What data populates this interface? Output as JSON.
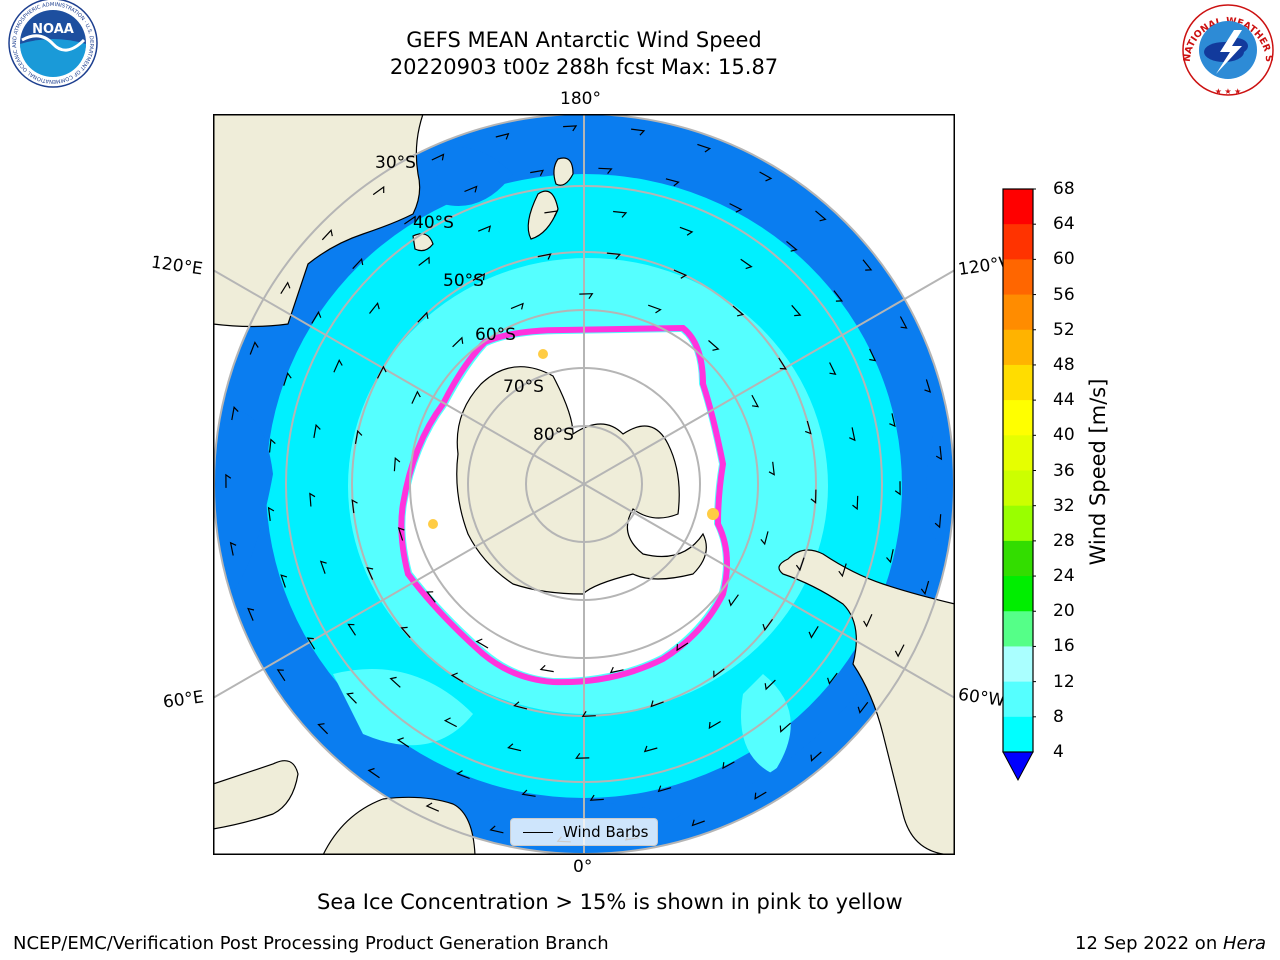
{
  "title_line1": "GEFS MEAN Antarctic Wind Speed",
  "title_line2": "20220903 t00z 288h fcst   Max: 15.87",
  "longitude_labels": {
    "top": "180°",
    "bottom": "0°",
    "upper_left": "120°E",
    "upper_right": "120°W",
    "lower_left": "60°E",
    "lower_right": "60°W"
  },
  "latitude_labels": [
    "30°S",
    "40°S",
    "50°S",
    "60°S",
    "70°S",
    "80°S"
  ],
  "legend": {
    "label": "Wind Barbs"
  },
  "colorbar": {
    "label": "Wind Speed [m/s]",
    "ticks": [
      "68",
      "64",
      "60",
      "56",
      "52",
      "48",
      "44",
      "40",
      "36",
      "32",
      "28",
      "24",
      "20",
      "16",
      "12",
      "8",
      "4"
    ],
    "colors_top_to_bottom": [
      "#ff0000",
      "#ff3300",
      "#ff6600",
      "#ff8c00",
      "#ffb300",
      "#ffdd00",
      "#ffff00",
      "#e6ff00",
      "#ccff00",
      "#99ff00",
      "#33dd00",
      "#00ee00",
      "#55ff88",
      "#aaffff",
      "#55ffff",
      "#00ffff",
      "#0077ff"
    ],
    "extend_color": "#0000ff"
  },
  "map_colors": {
    "land": "#efedd9",
    "ocean_strong": "#0a7df0",
    "ocean_mid": "#00f0ff",
    "ocean_light": "#55ffff",
    "ice_free": "#ffffff",
    "ice_edge_pink": "#ff33dd",
    "ice_edge_yellow": "#ffcc44",
    "grid": "#b5b5b5"
  },
  "caption": "Sea Ice Concentration > 15% is shown in pink to yellow",
  "footer_left": "NCEP/EMC/Verification Post Processing Product Generation Branch",
  "footer_right_prefix": "12 Sep 2022 on ",
  "footer_right_host": "Hera",
  "logos": {
    "noaa": {
      "text": "NOAA",
      "ring_text": "NATIONAL OCEANIC AND ATMOSPHERIC ADMINISTRATION · U.S. DEPARTMENT OF COMMERCE"
    },
    "nws": {
      "ring_text": "NATIONAL WEATHER SERVICE"
    }
  }
}
